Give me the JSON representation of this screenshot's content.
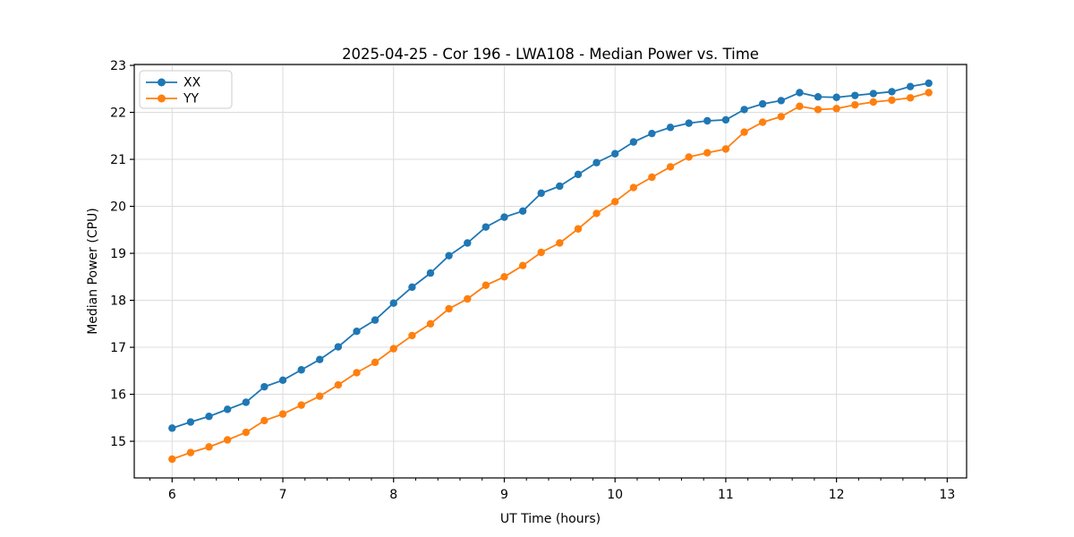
{
  "chart_data": {
    "type": "line",
    "title": "2025-04-25 - Cor 196 - LWA108 - Median Power vs. Time",
    "xlabel": "UT Time (hours)",
    "ylabel": "Median Power (CPU)",
    "xlim": [
      5.658,
      13.175
    ],
    "ylim": [
      14.22,
      23.02
    ],
    "xticks": [
      6,
      7,
      8,
      9,
      10,
      11,
      12,
      13
    ],
    "yticks": [
      15,
      16,
      17,
      18,
      19,
      20,
      21,
      22,
      23
    ],
    "x_minor_step": 0.2,
    "grid": true,
    "grid_color": "#dcdcdc",
    "spine_color": "#000000",
    "legend_position": "upper-left",
    "x": [
      6.0,
      6.167,
      6.333,
      6.5,
      6.667,
      6.833,
      7.0,
      7.167,
      7.333,
      7.5,
      7.667,
      7.833,
      8.0,
      8.167,
      8.333,
      8.5,
      8.667,
      8.833,
      9.0,
      9.167,
      9.333,
      9.5,
      9.667,
      9.833,
      10.0,
      10.167,
      10.333,
      10.5,
      10.667,
      10.833,
      11.0,
      11.167,
      11.333,
      11.5,
      11.667,
      11.833,
      12.0,
      12.167,
      12.333,
      12.5,
      12.667,
      12.833
    ],
    "series": [
      {
        "name": "XX",
        "color": "#1f77b4",
        "values": [
          15.28,
          15.41,
          15.53,
          15.68,
          15.83,
          16.16,
          16.3,
          16.52,
          16.74,
          17.01,
          17.34,
          17.58,
          17.94,
          18.28,
          18.58,
          18.95,
          19.22,
          19.56,
          19.77,
          19.9,
          20.28,
          20.43,
          20.68,
          20.93,
          21.12,
          21.37,
          21.55,
          21.68,
          21.77,
          21.82,
          21.84,
          22.06,
          22.18,
          22.25,
          22.42,
          22.33,
          22.32,
          22.36,
          22.4,
          22.44,
          22.55,
          22.62
        ]
      },
      {
        "name": "YY",
        "color": "#ff7f0e",
        "values": [
          14.62,
          14.76,
          14.88,
          15.03,
          15.19,
          15.44,
          15.58,
          15.77,
          15.96,
          16.2,
          16.46,
          16.68,
          16.97,
          17.25,
          17.5,
          17.82,
          18.03,
          18.32,
          18.5,
          18.74,
          19.02,
          19.22,
          19.52,
          19.85,
          20.1,
          20.4,
          20.62,
          20.84,
          21.05,
          21.14,
          21.22,
          21.58,
          21.79,
          21.91,
          22.13,
          22.06,
          22.08,
          22.16,
          22.22,
          22.26,
          22.31,
          22.42
        ]
      }
    ]
  },
  "layout_text": {
    "legend_items": [
      "XX",
      "YY"
    ]
  }
}
